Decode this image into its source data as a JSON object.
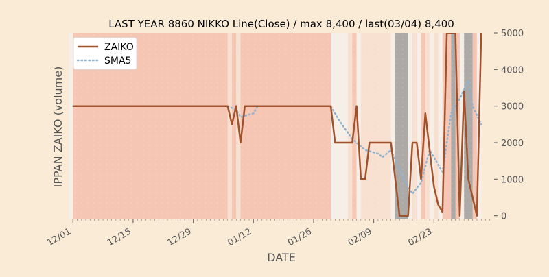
{
  "chart_data": {
    "type": "line",
    "title": "LAST YEAR 8860 NIKKO Line(Close) / max 8,400 / last(03/04) 8,400",
    "xlabel": "DATE",
    "ylabel": "IPPAN ZAIKO (volume)",
    "ylim": [
      -100,
      5000
    ],
    "yticks": [
      0,
      1000,
      2000,
      3000,
      4000,
      5000
    ],
    "y_axis_side": "right",
    "xlim": [
      "11-30",
      "03-08"
    ],
    "xticks": [
      {
        "date": "12-01",
        "label": "12/01"
      },
      {
        "date": "12-15",
        "label": "12/15"
      },
      {
        "date": "12-29",
        "label": "12/29"
      },
      {
        "date": "01-12",
        "label": "01/12"
      },
      {
        "date": "01-26",
        "label": "01/26"
      },
      {
        "date": "02-09",
        "label": "02/09"
      },
      {
        "date": "02-23",
        "label": "02/23"
      }
    ],
    "legend": {
      "position": "upper-left",
      "entries": [
        "ZAIKO",
        "SMA5"
      ]
    },
    "colors": {
      "background": "#faebd7",
      "zaiko": "#a0522d",
      "sma5": "#8fb3cf",
      "band_red_strong": "#f0a898",
      "band_red_light": "#f7d8cc",
      "band_white": "#f5f0ea",
      "band_gray": "#9e9e9e"
    },
    "series": [
      {
        "name": "ZAIKO",
        "style": "solid",
        "points": [
          [
            "12-01",
            3000
          ],
          [
            "01-06",
            3000
          ],
          [
            "01-07",
            2500
          ],
          [
            "01-08",
            3000
          ],
          [
            "01-09",
            2000
          ],
          [
            "01-10",
            3000
          ],
          [
            "01-30",
            3000
          ],
          [
            "01-31",
            2000
          ],
          [
            "02-04",
            2000
          ],
          [
            "02-05",
            3000
          ],
          [
            "02-06",
            1000
          ],
          [
            "02-07",
            1000
          ],
          [
            "02-08",
            2000
          ],
          [
            "02-13",
            2000
          ],
          [
            "02-15",
            0
          ],
          [
            "02-17",
            0
          ],
          [
            "02-18",
            2000
          ],
          [
            "02-19",
            2000
          ],
          [
            "02-20",
            1000
          ],
          [
            "02-21",
            2800
          ],
          [
            "02-23",
            800
          ],
          [
            "02-24",
            300
          ],
          [
            "02-25",
            100
          ],
          [
            "02-26",
            5000
          ],
          [
            "02-27",
            5000
          ],
          [
            "02-28",
            5000
          ],
          [
            "02-29",
            0
          ],
          [
            "03-01",
            3400
          ],
          [
            "03-02",
            1000
          ],
          [
            "03-04",
            0
          ],
          [
            "03-05",
            5000
          ]
        ]
      },
      {
        "name": "SMA5",
        "style": "dotted",
        "points": [
          [
            "12-01",
            3000
          ],
          [
            "01-06",
            3000
          ],
          [
            "01-08",
            2900
          ],
          [
            "01-09",
            2700
          ],
          [
            "01-12",
            2800
          ],
          [
            "01-13",
            3000
          ],
          [
            "01-30",
            3000
          ],
          [
            "02-01",
            2600
          ],
          [
            "02-04",
            2100
          ],
          [
            "02-07",
            1800
          ],
          [
            "02-10",
            1700
          ],
          [
            "02-11",
            1600
          ],
          [
            "02-13",
            1800
          ],
          [
            "02-16",
            1000
          ],
          [
            "02-18",
            600
          ],
          [
            "02-20",
            900
          ],
          [
            "02-22",
            1800
          ],
          [
            "02-25",
            1200
          ],
          [
            "02-27",
            2800
          ],
          [
            "02-29",
            3200
          ],
          [
            "03-02",
            3700
          ],
          [
            "03-03",
            3000
          ],
          [
            "03-05",
            2500
          ]
        ]
      }
    ],
    "bands": [
      {
        "from": "11-30",
        "to": "12-01",
        "kind": "white"
      },
      {
        "from": "12-01",
        "to": "01-06",
        "kind": "red_strong"
      },
      {
        "from": "01-06",
        "to": "01-07",
        "kind": "red_light"
      },
      {
        "from": "01-07",
        "to": "01-08",
        "kind": "red_strong"
      },
      {
        "from": "01-08",
        "to": "01-09",
        "kind": "red_light"
      },
      {
        "from": "01-09",
        "to": "01-30",
        "kind": "red_strong"
      },
      {
        "from": "01-30",
        "to": "02-03",
        "kind": "white"
      },
      {
        "from": "02-03",
        "to": "02-04",
        "kind": "red_light"
      },
      {
        "from": "02-04",
        "to": "02-05",
        "kind": "red_strong"
      },
      {
        "from": "02-05",
        "to": "02-06",
        "kind": "white"
      },
      {
        "from": "02-06",
        "to": "02-07",
        "kind": "red_light"
      },
      {
        "from": "02-07",
        "to": "02-13",
        "kind": "red_light"
      },
      {
        "from": "02-13",
        "to": "02-14",
        "kind": "white"
      },
      {
        "from": "02-14",
        "to": "02-17",
        "kind": "gray"
      },
      {
        "from": "02-17",
        "to": "02-18",
        "kind": "white"
      },
      {
        "from": "02-18",
        "to": "02-19",
        "kind": "red_light"
      },
      {
        "from": "02-19",
        "to": "02-20",
        "kind": "white"
      },
      {
        "from": "02-20",
        "to": "02-21",
        "kind": "red_strong"
      },
      {
        "from": "02-21",
        "to": "02-22",
        "kind": "red_light"
      },
      {
        "from": "02-22",
        "to": "02-23",
        "kind": "white"
      },
      {
        "from": "02-23",
        "to": "02-24",
        "kind": "red_light"
      },
      {
        "from": "02-24",
        "to": "02-25",
        "kind": "white"
      },
      {
        "from": "02-25",
        "to": "02-27",
        "kind": "red_strong"
      },
      {
        "from": "02-27",
        "to": "02-28",
        "kind": "gray"
      },
      {
        "from": "02-28",
        "to": "02-29",
        "kind": "red_strong"
      },
      {
        "from": "02-29",
        "to": "03-01",
        "kind": "white"
      },
      {
        "from": "03-01",
        "to": "03-03",
        "kind": "gray"
      },
      {
        "from": "03-03",
        "to": "03-04",
        "kind": "red_strong"
      },
      {
        "from": "03-04",
        "to": "03-05",
        "kind": "white"
      }
    ]
  }
}
